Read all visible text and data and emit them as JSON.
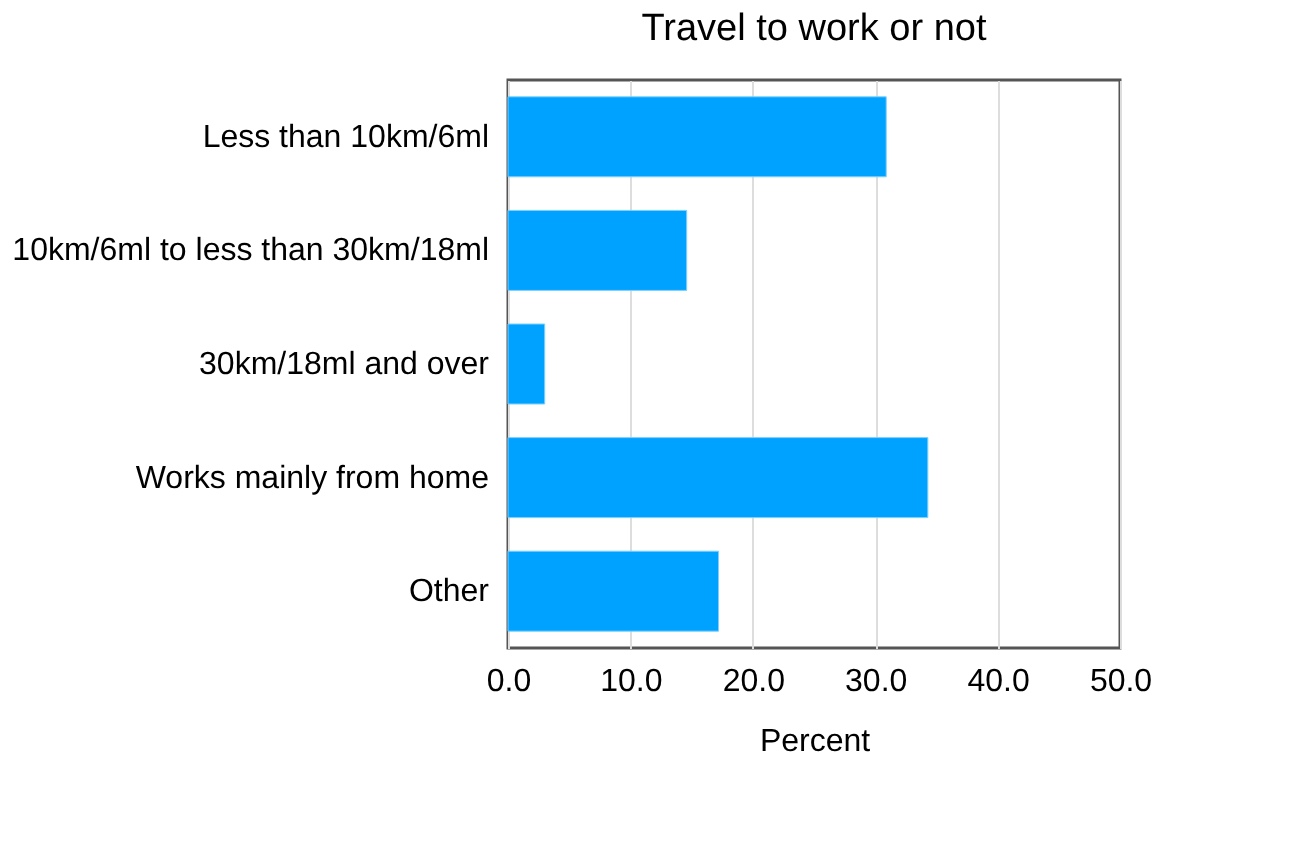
{
  "chart_data": {
    "type": "bar",
    "orientation": "horizontal",
    "title": "Travel to work or not",
    "xlabel": "Percent",
    "categories": [
      "Less than 10km/6ml",
      "10km/6ml to less than 30km/18ml",
      "30km/18ml and over",
      "Works mainly from home",
      "Other"
    ],
    "values": [
      30.9,
      14.6,
      3.0,
      34.3,
      17.2
    ],
    "color": "#00a2ff",
    "xlim": [
      0,
      50
    ],
    "xticks": [
      {
        "value": 0,
        "label": "0.0"
      },
      {
        "value": 10,
        "label": "10.0"
      },
      {
        "value": 20,
        "label": "20.0"
      },
      {
        "value": 30,
        "label": "30.0"
      },
      {
        "value": 40,
        "label": "40.0"
      },
      {
        "value": 50,
        "label": "50.0"
      }
    ],
    "grid": "x"
  }
}
